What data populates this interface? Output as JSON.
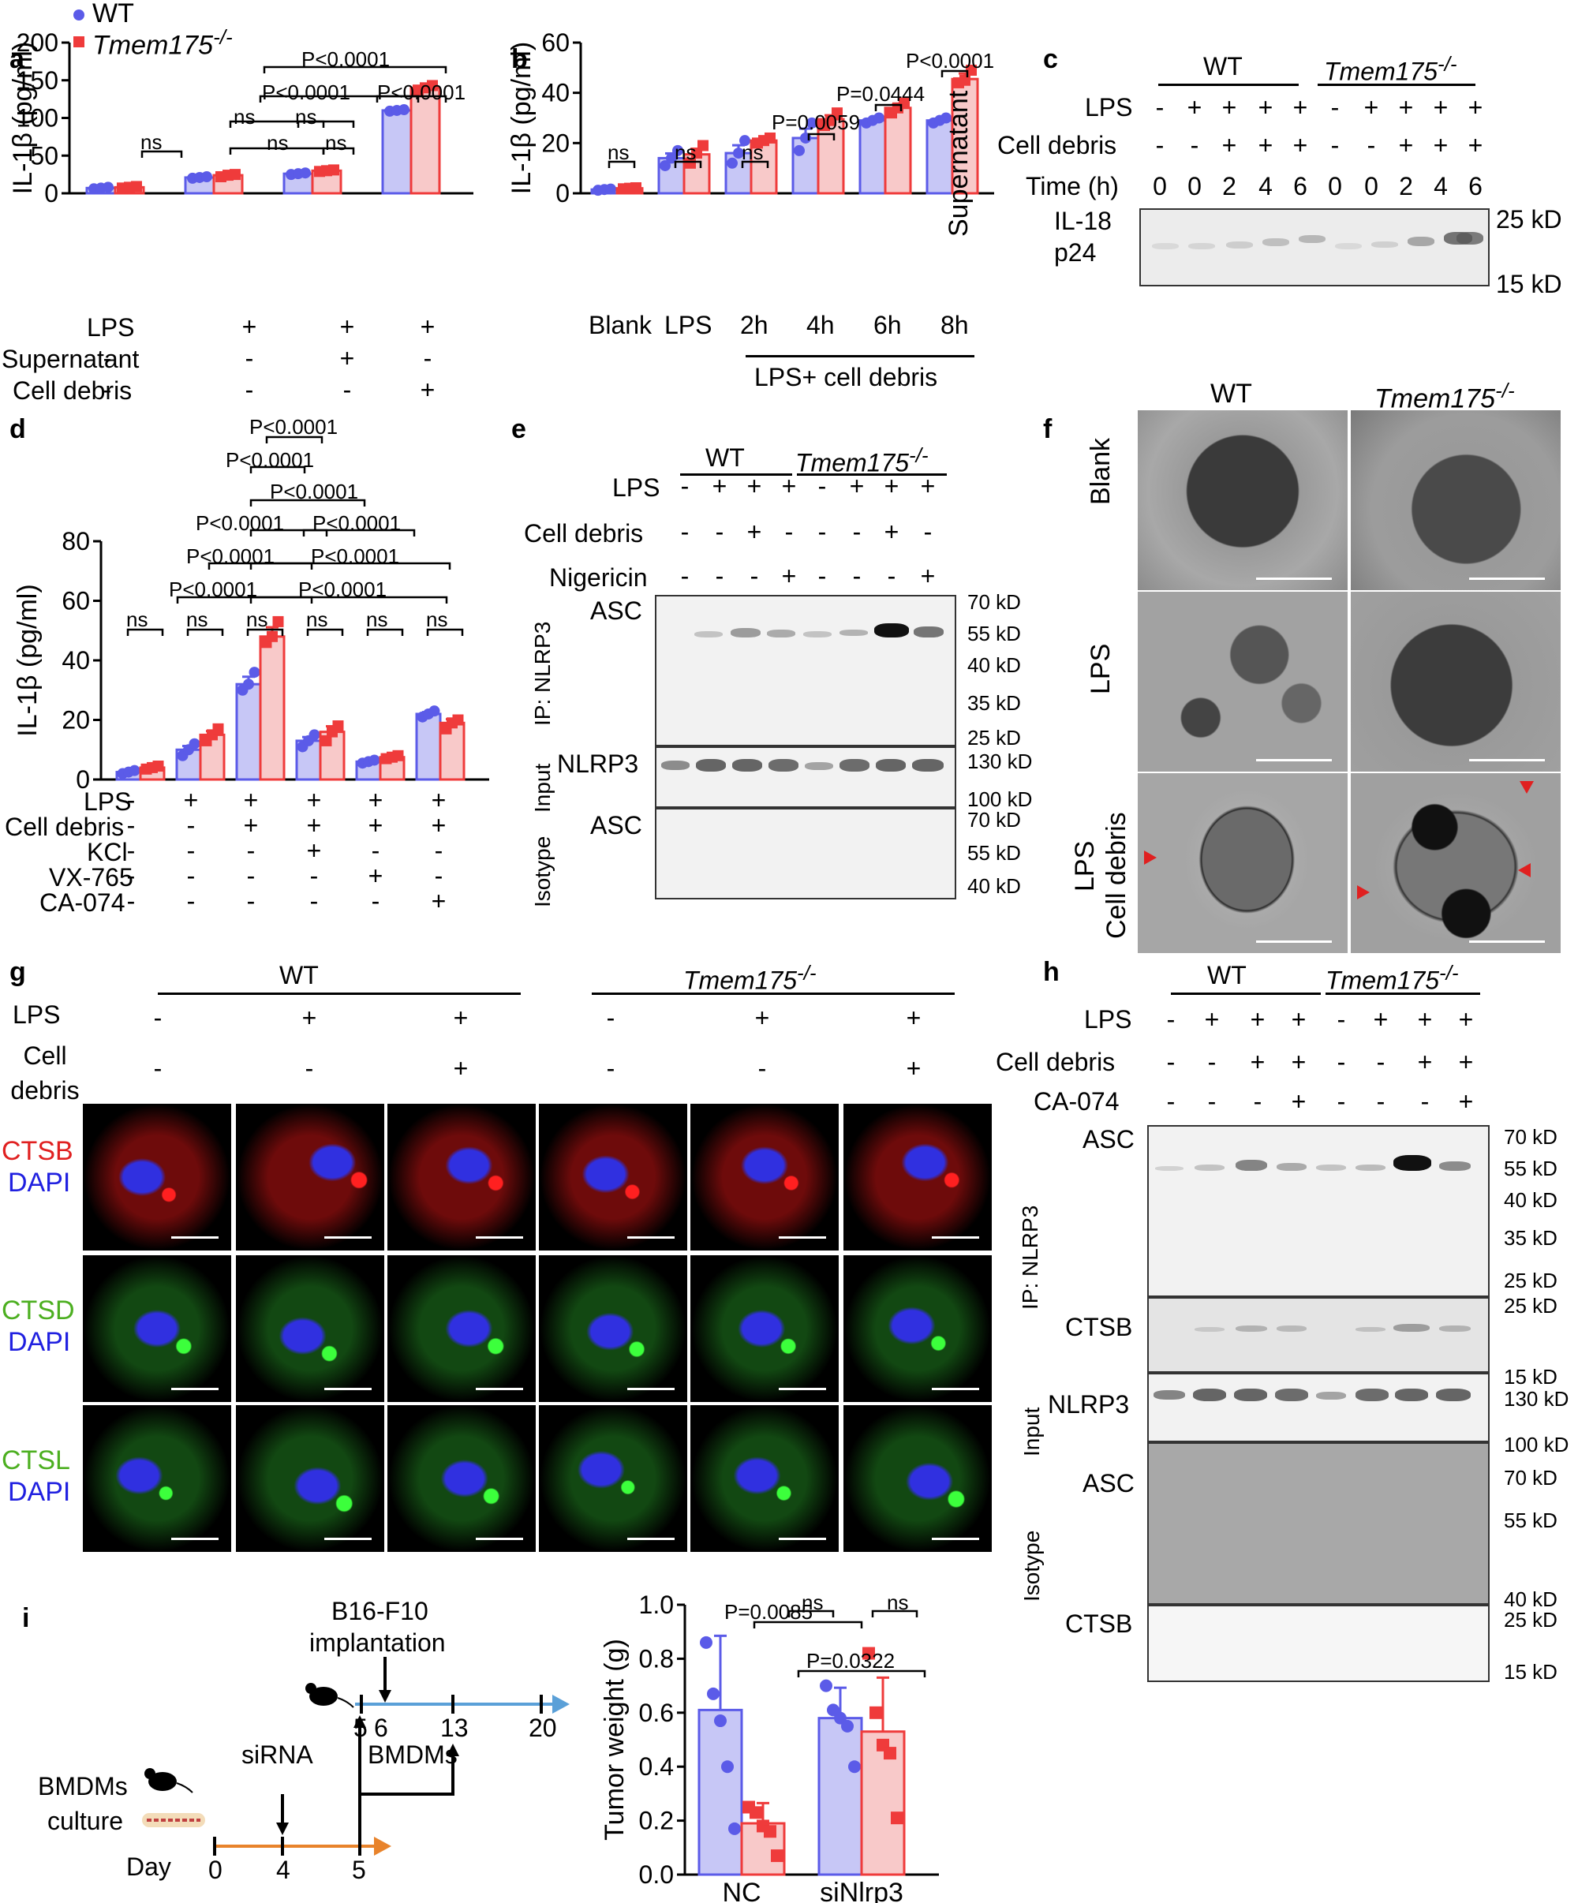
{
  "legend": {
    "wt": "WT",
    "ko": "Tmem175",
    "sup": "-/-"
  },
  "colors": {
    "wt": "#5b5be8",
    "ko": "#ef3b3b",
    "wt_fill": "#c7c7f6",
    "ko_fill": "#f8c9c9",
    "arrow_blue": "#5aa0d8",
    "arrow_orange": "#e8832b"
  },
  "panel_labels": {
    "a": "a",
    "b": "b",
    "c": "c",
    "d": "d",
    "e": "e",
    "f": "f",
    "g": "g",
    "h": "h",
    "i": "i"
  },
  "panel_a": {
    "rows": [
      {
        "label": "LPS",
        "values": [
          "-",
          "+",
          "+",
          "+"
        ]
      },
      {
        "label": "Supernatant",
        "values": [
          "-",
          "-",
          "+",
          "-"
        ]
      },
      {
        "label": "Cell debris",
        "values": [
          "-",
          "-",
          "-",
          "+"
        ]
      }
    ],
    "stats": [
      "ns",
      "ns",
      "ns",
      "ns",
      "ns",
      "P<0.0001",
      "P<0.0001",
      "P<0.0001"
    ]
  },
  "panel_b": {
    "xlabel_group": "LPS+ cell debris",
    "stats": [
      "ns",
      "ns",
      "ns",
      "P=0.0059",
      "P=0.0444",
      "P<0.0001"
    ]
  },
  "panel_c": {
    "title_wt": "WT",
    "title_ko": "Tmem175",
    "rows": [
      {
        "label": "LPS",
        "values": [
          "-",
          "+",
          "+",
          "+",
          "+",
          "-",
          "+",
          "+",
          "+",
          "+"
        ]
      },
      {
        "label": "Cell debris",
        "values": [
          "-",
          "-",
          "+",
          "+",
          "+",
          "-",
          "-",
          "+",
          "+",
          "+"
        ]
      },
      {
        "label": "Time (h)",
        "values": [
          "0",
          "0",
          "2",
          "4",
          "6",
          "0",
          "0",
          "2",
          "4",
          "6"
        ]
      }
    ],
    "side": "Supernatant",
    "band_label_1": "IL-18",
    "band_label_2": "p24",
    "mw": [
      "25 kD",
      "15 kD"
    ]
  },
  "panel_d": {
    "rows": [
      {
        "label": "LPS",
        "values": [
          "-",
          "+",
          "+",
          "+",
          "+",
          "+"
        ]
      },
      {
        "label": "Cell debris",
        "values": [
          "-",
          "-",
          "+",
          "+",
          "+",
          "+"
        ]
      },
      {
        "label": "KCl",
        "values": [
          "-",
          "-",
          "-",
          "+",
          "-",
          "-"
        ]
      },
      {
        "label": "VX-765",
        "values": [
          "-",
          "-",
          "-",
          "-",
          "+",
          "-"
        ]
      },
      {
        "label": "CA-074",
        "values": [
          "-",
          "-",
          "-",
          "-",
          "-",
          "+"
        ]
      }
    ],
    "stats": [
      "ns",
      "ns",
      "ns",
      "ns",
      "ns",
      "ns",
      "P<0.0001",
      "P<0.0001",
      "P<0.0001",
      "P<0.0001",
      "P<0.0001",
      "P<0.0001",
      "P<0.0001",
      "P<0.0001",
      "P<0.0001",
      "P<0.0001"
    ]
  },
  "panel_e": {
    "title_wt": "WT",
    "title_ko": "Tmem175",
    "rows": [
      {
        "label": "LPS",
        "values": [
          "-",
          "+",
          "+",
          "+",
          "-",
          "+",
          "+",
          "+"
        ]
      },
      {
        "label": "Cell debris",
        "values": [
          "-",
          "-",
          "+",
          "-",
          "-",
          "-",
          "+",
          "-"
        ]
      },
      {
        "label": "Nigericin",
        "values": [
          "-",
          "-",
          "-",
          "+",
          "-",
          "-",
          "-",
          "+"
        ]
      }
    ],
    "blot_labels": [
      "ASC",
      "NLRP3",
      "ASC"
    ],
    "side_labels": [
      "IP: NLRP3",
      "Input",
      "Isotype"
    ],
    "mw": [
      "70 kD",
      "55 kD",
      "40 kD",
      "35 kD",
      "25 kD",
      "130 kD",
      "100 kD",
      "70 kD",
      "55 kD",
      "40 kD"
    ]
  },
  "panel_f": {
    "col_wt": "WT",
    "col_ko": "Tmem175",
    "rows": [
      "Blank",
      "LPS",
      "LPS",
      "Cell debris"
    ]
  },
  "panel_g": {
    "title_wt": "WT",
    "title_ko": "Tmem175",
    "rows": [
      {
        "label": "LPS",
        "values": [
          "-",
          "+",
          "+",
          "-",
          "+",
          "+"
        ]
      },
      {
        "label": "Cell debris",
        "values": [
          "-",
          "-",
          "+",
          "-",
          "-",
          "+"
        ]
      }
    ],
    "row_labels": [
      {
        "a": "CTSB",
        "b": "DAPI"
      },
      {
        "a": "CTSD",
        "b": "DAPI"
      },
      {
        "a": "CTSL",
        "b": "DAPI"
      }
    ]
  },
  "panel_h": {
    "title_wt": "WT",
    "title_ko": "Tmem175",
    "rows": [
      {
        "label": "LPS",
        "values": [
          "-",
          "+",
          "+",
          "+",
          "-",
          "+",
          "+",
          "+"
        ]
      },
      {
        "label": "Cell debris",
        "values": [
          "-",
          "-",
          "+",
          "+",
          "-",
          "-",
          "+",
          "+"
        ]
      },
      {
        "label": "CA-074",
        "values": [
          "-",
          "-",
          "-",
          "+",
          "-",
          "-",
          "-",
          "+"
        ]
      }
    ],
    "blot_labels": [
      "ASC",
      "CTSB",
      "NLRP3",
      "ASC",
      "CTSB"
    ],
    "side_labels": [
      "IP: NLRP3",
      "Input",
      "Isotype"
    ],
    "mw": [
      "70 kD",
      "55 kD",
      "40 kD",
      "35 kD",
      "25 kD",
      "25 kD",
      "15 kD",
      "130 kD",
      "100 kD",
      "70 kD",
      "55 kD",
      "40 kD",
      "25 kD",
      "15 kD"
    ]
  },
  "panel_i": {
    "implant": "B16-F10",
    "implant2": "implantation",
    "sirna": "siRNA",
    "bmdms": "BMDMs",
    "culture1": "BMDMs",
    "culture2": "culture",
    "day": "Day",
    "top_days": [
      "5",
      "6",
      "13",
      "20"
    ],
    "bottom_days": [
      "0",
      "4",
      "5"
    ],
    "stats": [
      "P=0.0085",
      "ns",
      "ns",
      "P=0.0322"
    ]
  },
  "chart_data": [
    {
      "panel": "a",
      "type": "bar",
      "ylabel": "IL-1β (pg/ml)",
      "ylim": [
        0,
        200
      ],
      "yticks": [
        0,
        50,
        100,
        150,
        200
      ],
      "series": [
        {
          "name": "WT",
          "values": [
            7,
            21,
            26,
            110
          ],
          "points": [
            [
              6,
              7,
              8
            ],
            [
              20,
              21,
              22
            ],
            [
              25,
              26,
              27
            ],
            [
              109,
              110,
              111
            ]
          ]
        },
        {
          "name": "Tmem175-/-",
          "values": [
            8,
            24,
            30,
            140
          ],
          "points": [
            [
              7,
              8,
              9
            ],
            [
              22,
              24,
              25
            ],
            [
              29,
              30,
              31
            ],
            [
              137,
              140,
              143
            ]
          ]
        }
      ]
    },
    {
      "panel": "b",
      "type": "bar",
      "ylabel": "IL-1β (pg/ml)",
      "ylim": [
        0,
        60
      ],
      "yticks": [
        0,
        20,
        40,
        60
      ],
      "categories": [
        "Blank",
        "LPS",
        "2h",
        "4h",
        "6h",
        "8h"
      ],
      "series": [
        {
          "name": "WT",
          "values": [
            1.5,
            14,
            16,
            22,
            29,
            29
          ],
          "points": [
            [
              1.2,
              1.5,
              1.7
            ],
            [
              11,
              14,
              17
            ],
            [
              12,
              16,
              21
            ],
            [
              17,
              22,
              28
            ],
            [
              28,
              29,
              30
            ],
            [
              28,
              29,
              30
            ]
          ]
        },
        {
          "name": "Tmem175-/-",
          "values": [
            2,
            15.5,
            21,
            29.5,
            34,
            45.5
          ],
          "points": [
            [
              1.8,
              2,
              2.2
            ],
            [
              12,
              16,
              19
            ],
            [
              20,
              21,
              22
            ],
            [
              27,
              29,
              32
            ],
            [
              32,
              34,
              36
            ],
            [
              44,
              45,
              49
            ]
          ]
        }
      ]
    },
    {
      "panel": "d",
      "type": "bar",
      "ylabel": "IL-1β (pg/ml)",
      "ylim": [
        0,
        80
      ],
      "yticks": [
        0,
        20,
        40,
        60,
        80
      ],
      "series": [
        {
          "name": "WT",
          "values": [
            2.5,
            10,
            32,
            13,
            6,
            22
          ],
          "points": [
            [
              2,
              2.5,
              3
            ],
            [
              8,
              10,
              12
            ],
            [
              30,
              32,
              36
            ],
            [
              11,
              13,
              15
            ],
            [
              5.5,
              6,
              6.5
            ],
            [
              21,
              22,
              23
            ]
          ]
        },
        {
          "name": "Tmem175-/-",
          "values": [
            4,
            15,
            48,
            16,
            7.5,
            19
          ],
          "points": [
            [
              3.5,
              4,
              4.5
            ],
            [
              13,
              15,
              17
            ],
            [
              46,
              48,
              53
            ],
            [
              13,
              16,
              18
            ],
            [
              7,
              7.5,
              8
            ],
            [
              17,
              19,
              20
            ]
          ]
        }
      ]
    },
    {
      "panel": "i",
      "type": "bar",
      "ylabel": "Tumor weight (g)",
      "ylim": [
        0,
        1.0
      ],
      "yticks": [
        0.0,
        0.2,
        0.4,
        0.6,
        0.8,
        1.0
      ],
      "categories": [
        "NC",
        "siNlrp3"
      ],
      "series": [
        {
          "name": "WT",
          "values": [
            0.61,
            0.58
          ],
          "points": [
            [
              0.86,
              0.67,
              0.57,
              0.4,
              0.17
            ],
            [
              0.7,
              0.61,
              0.58,
              0.55,
              0.4
            ]
          ]
        },
        {
          "name": "Tmem175-/-",
          "values": [
            0.19,
            0.53
          ],
          "points": [
            [
              0.25,
              0.23,
              0.18,
              0.16,
              0.07
            ],
            [
              0.82,
              0.6,
              0.48,
              0.45,
              0.21
            ]
          ]
        }
      ]
    }
  ]
}
